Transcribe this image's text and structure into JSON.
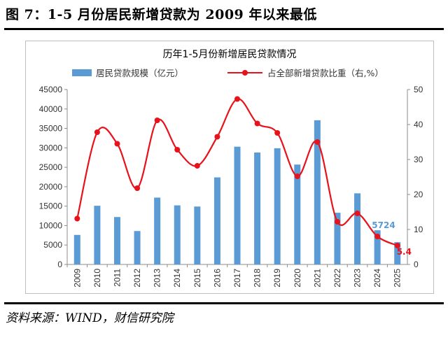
{
  "figure_title": "图 7：1-5 月份居民新增贷款为 2009 年以来最低",
  "source": "资料来源：WIND，财信研究院",
  "colors": {
    "bar": "#5b9bd5",
    "line": "#e8121b",
    "last_bar_label": "#5b9bd5",
    "last_line_label": "#e8121b"
  },
  "chart_data": {
    "type": "bar",
    "title": "历年1-5月份新增居民贷款情况",
    "categories": [
      "2009",
      "2010",
      "2011",
      "2012",
      "2013",
      "2014",
      "2015",
      "2016",
      "2017",
      "2018",
      "2019",
      "2020",
      "2021",
      "2022",
      "2023",
      "2024",
      "2025"
    ],
    "series": [
      {
        "name": "居民贷款规模（亿元）",
        "type": "bar",
        "axis": "left",
        "values": [
          7600,
          15100,
          12200,
          8600,
          17200,
          15200,
          14900,
          22400,
          30300,
          28800,
          29900,
          25700,
          37100,
          13300,
          18300,
          8800,
          5724
        ]
      },
      {
        "name": "占全部新增贷款比重（右,%）",
        "type": "line",
        "axis": "right",
        "values": [
          13.1,
          37.8,
          34.5,
          21.8,
          41.2,
          32.8,
          28.2,
          36.5,
          47.3,
          40.3,
          37.6,
          25.2,
          35.0,
          12.2,
          14.6,
          8.0,
          5.4
        ]
      }
    ],
    "ylim_left": [
      0,
      45000
    ],
    "yticks_left": [
      0,
      5000,
      10000,
      15000,
      20000,
      25000,
      30000,
      35000,
      40000,
      45000
    ],
    "ylim_right": [
      0,
      50
    ],
    "yticks_right": [
      0,
      10,
      20,
      30,
      40,
      50
    ],
    "data_labels": [
      {
        "category": "2025",
        "series": "居民贷款规模（亿元）",
        "text": "5724"
      },
      {
        "category": "2025",
        "series": "占全部新增贷款比重（右,%）",
        "text": "5.4"
      }
    ],
    "legend": "top",
    "grid": false
  }
}
